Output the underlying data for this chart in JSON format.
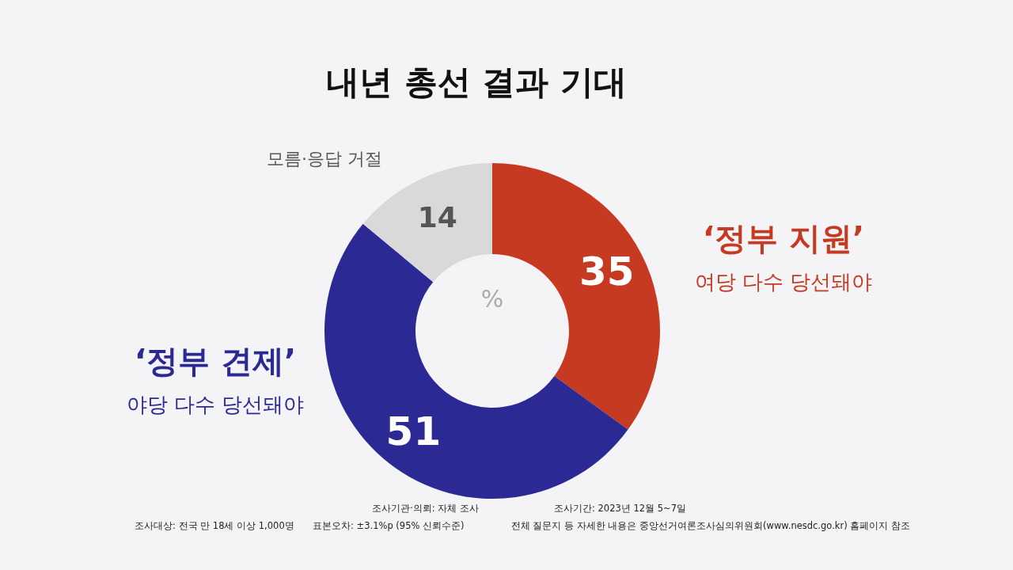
{
  "chart_data": {
    "type": "donut",
    "title": "내년 총선 결과 기대",
    "categories": [
      "‘정부 지원’\n여당 다수 당선돼야",
      "‘정부 견제’\n야당 다수 당선돼야",
      "모름·응답 거절"
    ],
    "values": [
      35,
      51,
      14
    ],
    "colors": [
      "#c63a22",
      "#2b2a95",
      "#d9d9d9"
    ],
    "data_labels": true,
    "annotations": [
      "%",
      "조사기관·의뢰: 자체 조사",
      "조사기간: 2023년 12월 5~7일",
      "조사대상: 전국 만 18세 이상 1,000명",
      "표본오차: ±3.1%p (95% 신뢰수준)",
      "전체 질문지 등 자세한 내용은 중앙선거여론조사심의위원회(www.nesdc.go.kr) 홈페이지 참조"
    ]
  }
}
